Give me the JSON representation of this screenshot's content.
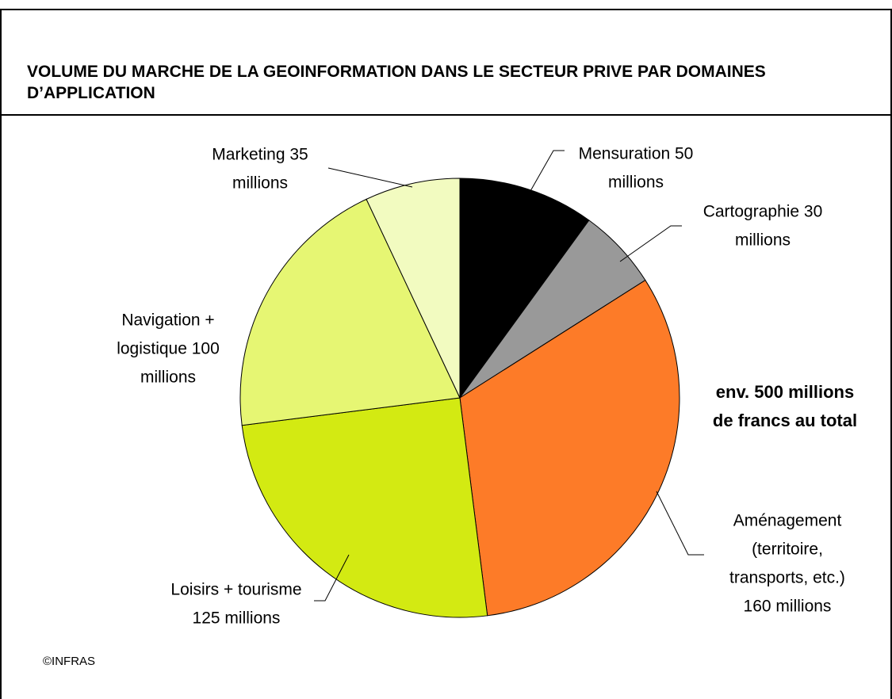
{
  "chart_data": {
    "type": "pie",
    "title": [
      "VOLUME DU MARCHE DE LA GEOINFORMATION DANS LE SECTEUR PRIVE PAR DOMAINES",
      "D’APPLICATION"
    ],
    "categories": [
      "Mensuration",
      "Cartographie",
      "Aménagement",
      "Loisirs + tourisme",
      "Navigation + logistique",
      "Marketing"
    ],
    "values": [
      50,
      30,
      160,
      125,
      100,
      35
    ],
    "labels": [
      [
        "Mensuration 50",
        "millions"
      ],
      [
        "Cartographie 30",
        "millions"
      ],
      [
        "Aménagement",
        "(territoire,",
        "transports, etc.)",
        "160 millions"
      ],
      [
        "Loisirs + tourisme",
        "125 millions"
      ],
      [
        "Navigation +",
        "logistique 100",
        "millions"
      ],
      [
        "Marketing 35",
        "millions"
      ]
    ],
    "colors": [
      "#000000",
      "#999999",
      "#fd7b28",
      "#d3ea12",
      "#e6f673",
      "#f2fbc0"
    ],
    "annotation": [
      "env. 500 millions",
      "de francs au total"
    ],
    "source": "©INFRAS"
  }
}
